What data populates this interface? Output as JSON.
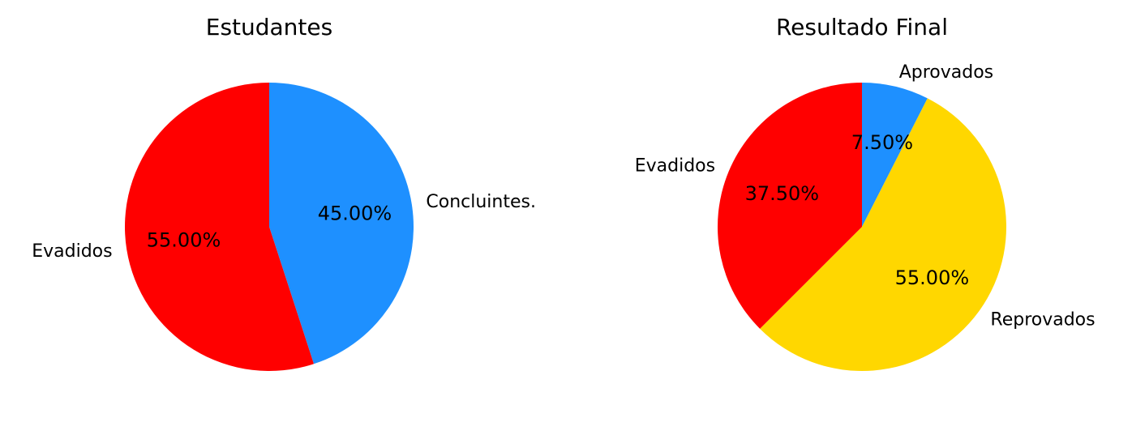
{
  "chart_data": [
    {
      "type": "pie",
      "title": "Estudantes",
      "start_angle_deg": 90,
      "direction": "clockwise",
      "slices": [
        {
          "label": "Concluintes.",
          "value": 45.0,
          "pct_label": "45.00%",
          "color": "#1E90FF"
        },
        {
          "label": "Evadidos",
          "value": 55.0,
          "pct_label": "55.00%",
          "color": "#FF0000"
        }
      ]
    },
    {
      "type": "pie",
      "title": "Resultado Final",
      "start_angle_deg": 90,
      "direction": "clockwise",
      "slices": [
        {
          "label": "Aprovados",
          "value": 7.5,
          "pct_label": "7.50%",
          "color": "#1E90FF"
        },
        {
          "label": "Reprovados",
          "value": 55.0,
          "pct_label": "55.00%",
          "color": "#FFD700"
        },
        {
          "label": "Evadidos",
          "value": 37.5,
          "pct_label": "37.50%",
          "color": "#FF0000"
        }
      ]
    }
  ]
}
